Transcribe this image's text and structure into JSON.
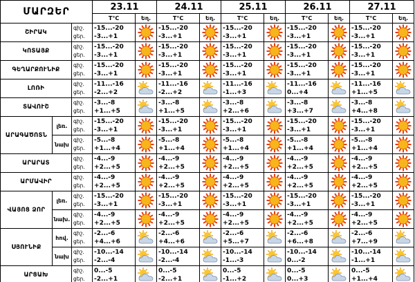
{
  "title": "ՄԱՐԶԵՐ",
  "dates": [
    "23.11",
    "24.11",
    "25.11",
    "26.11",
    "27.11"
  ],
  "temp_label": "T°C",
  "weather_label": "Եղ.",
  "night_label": "գիշ.",
  "day_label": "ցեր.",
  "regions": [
    {
      "name": "ՇԻՐԱԿ",
      "rows": [
        {
          "night": [
            "-15...-20",
            "-15...-20",
            "-15...-20",
            "-15...-20",
            "-15...-20"
          ],
          "day": [
            "-3...+1",
            "-3...+1",
            "-3...+1",
            "-3...+1",
            "-3...+1"
          ]
        }
      ]
    },
    {
      "name": "ԿՈՏԱՅՔ",
      "rows": [
        {
          "night": [
            "-15...-20",
            "-15...-20",
            "-15...-20",
            "-15...-20",
            "-15...-20"
          ],
          "day": [
            "-3...+1",
            "-3...+1",
            "-3...+1",
            "-3...+1",
            "-3...+1"
          ]
        }
      ]
    },
    {
      "name": "ԳԵՂԱՐՔՈՒՆԻՔ",
      "rows": [
        {
          "night": [
            "-15...-20",
            "-15...-20",
            "-15...-20",
            "-15...-20",
            "-15...-20"
          ],
          "day": [
            "-3...+1",
            "-3...+1",
            "-3...+1",
            "-3...+1",
            "-3...+1"
          ]
        }
      ]
    },
    {
      "name": "ԼՈՌԻ",
      "rows": [
        {
          "night": [
            "-11...-16",
            "-11...-16",
            "-11...-16",
            "-11...-16",
            "-11...-16"
          ],
          "day": [
            "-2...+2",
            "-2...+2",
            "-1...+3",
            "0...+4",
            "+1...+5"
          ]
        }
      ]
    },
    {
      "name": "ՏԱՎՈՒՇ",
      "rows": [
        {
          "night": [
            "-3...-8",
            "-3...-8",
            "-3...-8",
            "-3...-8",
            "-3...-8"
          ],
          "day": [
            "+1...+5",
            "+1...+5",
            "+2...+6",
            "+3...+7",
            "+4...+8"
          ]
        }
      ]
    },
    {
      "name": "ԱՐԱԳԱԾՈՏՆ",
      "rows": [
        {
          "sub": "լեռ.",
          "night": [
            "-15...-20",
            "-15...-20",
            "-15...-20",
            "-15...-20",
            "-15...-20"
          ],
          "day": [
            "-3...+1",
            "-3...+1",
            "-3...+1",
            "-3...+1",
            "-3...+1"
          ]
        },
        {
          "sub": "նախ",
          "night": [
            "-5...-8",
            "-5...-8",
            "-5...-8",
            "-5...-8",
            "-5...-8"
          ],
          "day": [
            "+1...+4",
            "+1...+4",
            "+1...+4",
            "+1...+4",
            "+1...+4"
          ]
        }
      ]
    },
    {
      "name": "ԱՐԱՐԱՏ",
      "rows": [
        {
          "night": [
            "-4...-9",
            "-4...-9",
            "-4...-9",
            "-4...-9",
            "-4...-9"
          ],
          "day": [
            "+2...+5",
            "+2...+5",
            "+2...+5",
            "+2...+5",
            "+2...+5"
          ]
        }
      ]
    },
    {
      "name": "ԱՐՄԱՎԻՐ",
      "rows": [
        {
          "night": [
            "-4...-9",
            "-4...-9",
            "-4...-9",
            "-4...-9",
            "-4...-9"
          ],
          "day": [
            "+2...+5",
            "+2...+5",
            "+2...+5",
            "+2...+5",
            "+2...+5"
          ]
        }
      ]
    },
    {
      "name": "ՎԱՅՈՑ ՁՈՐ",
      "rows": [
        {
          "sub": "լեռ.",
          "night": [
            "-15...-20",
            "-15...-20",
            "-15...-20",
            "-15...-20",
            "-15...-20"
          ],
          "day": [
            "-3...+1",
            "-3...+1",
            "-3...+1",
            "-3...+1",
            "-3...+1"
          ]
        },
        {
          "sub": "նախ.",
          "night": [
            "-4...-9",
            "-4...-9",
            "-4...-9",
            "-4...-9",
            "-4...-9"
          ],
          "day": [
            "+2...+5",
            "+2...+5",
            "+2...+5",
            "+2...+5",
            "+2...+5"
          ]
        }
      ]
    },
    {
      "name": "ՍՅՈՒՆԻՔ",
      "rows": [
        {
          "sub": "հով.",
          "night": [
            "-2...-6",
            "-2...-6",
            "-2...-6",
            "-2...-6",
            "-2...-6"
          ],
          "day": [
            "+4...+6",
            "+4...+6",
            "+5...+7",
            "+6...+8",
            "+7...+9"
          ]
        },
        {
          "sub": "նախ",
          "night": [
            "-10...-14",
            "-10...-14",
            "-10...-14",
            "-10...-14",
            "-10...-14"
          ],
          "day": [
            "-2...-4",
            "-2...-4",
            "-1...-3",
            "0...-2",
            "-1...+1"
          ]
        }
      ]
    },
    {
      "name": "ԱՐՑԱԽ",
      "rows": [
        {
          "night": [
            "0...-5",
            "0...-5",
            "0...-5",
            "0...-5",
            "0...-5"
          ],
          "day": [
            "-2...+1",
            "-2...+1",
            "-1...+2",
            "0...+3",
            "+1...+4"
          ]
        }
      ]
    }
  ]
}
